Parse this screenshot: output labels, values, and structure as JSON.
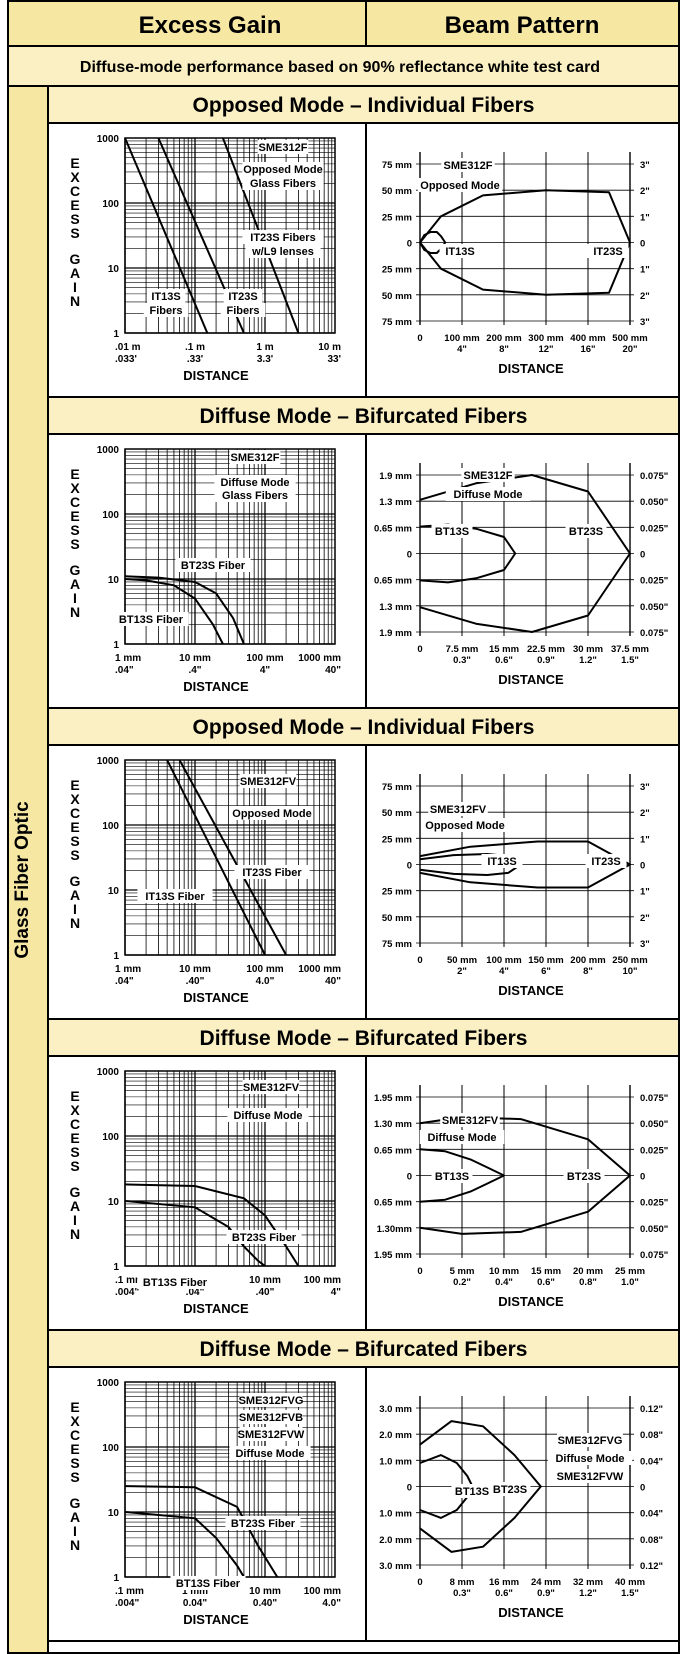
{
  "header": {
    "col1": "Excess Gain",
    "col2": "Beam Pattern"
  },
  "note": "Diffuse-mode performance based on 90% reflectance white test card",
  "side_label": "Glass Fiber Optic",
  "colors": {
    "header_bg": "#f6e7a3",
    "note_bg": "#fbf0c3",
    "side_bg": "#f6e7a3",
    "line": "#000000",
    "bg": "#ffffff"
  },
  "sections": [
    {
      "title": "Opposed Mode – Individual Fibers",
      "gain": {
        "ylabel": "EXCESS GAIN",
        "xlabel": "DISTANCE",
        "y_ticks": [
          "1000",
          "100",
          "10",
          "1"
        ],
        "x_ticks": [
          [
            ".01 m",
            ".033'"
          ],
          [
            ".1 m",
            ".33'"
          ],
          [
            "1 m",
            "3.3'"
          ],
          [
            "10 m",
            "33'"
          ]
        ],
        "boxes": [
          [
            "SME312F"
          ],
          [
            "Opposed Mode",
            "Glass Fibers"
          ],
          [
            "IT23S Fibers",
            "w/L9 lenses"
          ],
          [
            "IT13S",
            "Fibers"
          ],
          [
            "IT23S",
            "Fibers"
          ]
        ]
      },
      "beam": {
        "xlabel": "DISTANCE",
        "y_left": [
          "75 mm",
          "50 mm",
          "25 mm",
          "0",
          "25 mm",
          "50 mm",
          "75 mm"
        ],
        "y_right": [
          "3\"",
          "2\"",
          "1\"",
          "0",
          "1\"",
          "2\"",
          "3\""
        ],
        "x_ticks": [
          [
            "0",
            ""
          ],
          [
            "100 mm",
            "4\""
          ],
          [
            "200 mm",
            "8\""
          ],
          [
            "300 mm",
            "12\""
          ],
          [
            "400 mm",
            "16\""
          ],
          [
            "500 mm",
            "20\""
          ]
        ],
        "boxes": [
          [
            "SME312F"
          ],
          [
            "Opposed Mode"
          ],
          [
            "IT13S"
          ],
          [
            "IT23S"
          ]
        ]
      }
    },
    {
      "title": "Diffuse Mode – Bifurcated Fibers",
      "gain": {
        "ylabel": "EXCESS GAIN",
        "xlabel": "DISTANCE",
        "y_ticks": [
          "1000",
          "100",
          "10",
          "1"
        ],
        "x_ticks": [
          [
            "1 mm",
            ".04\""
          ],
          [
            "10 mm",
            ".4\""
          ],
          [
            "100 mm",
            "4\""
          ],
          [
            "1000 mm",
            "40\""
          ]
        ],
        "boxes": [
          [
            "SME312F"
          ],
          [
            "Diffuse Mode",
            "Glass Fibers"
          ],
          [
            "BT23S Fiber"
          ],
          [
            "BT13S Fiber"
          ]
        ]
      },
      "beam": {
        "xlabel": "DISTANCE",
        "y_left": [
          "1.9 mm",
          "1.3 mm",
          "0.65 mm",
          "0",
          "0.65 mm",
          "1.3 mm",
          "1.9 mm"
        ],
        "y_right": [
          "0.075\"",
          "0.050\"",
          "0.025\"",
          "0",
          "0.025\"",
          "0.050\"",
          "0.075\""
        ],
        "x_ticks": [
          [
            "0",
            ""
          ],
          [
            "7.5 mm",
            "0.3\""
          ],
          [
            "15 mm",
            "0.6\""
          ],
          [
            "22.5 mm",
            "0.9\""
          ],
          [
            "30 mm",
            "1.2\""
          ],
          [
            "37.5 mm",
            "1.5\""
          ]
        ],
        "boxes": [
          [
            "SME312F"
          ],
          [
            "Diffuse Mode"
          ],
          [
            "BT13S"
          ],
          [
            "BT23S"
          ]
        ]
      }
    },
    {
      "title": "Opposed Mode – Individual Fibers",
      "gain": {
        "ylabel": "EXCESS GAIN",
        "xlabel": "DISTANCE",
        "y_ticks": [
          "1000",
          "100",
          "10",
          "1"
        ],
        "x_ticks": [
          [
            "1 mm",
            ".04\""
          ],
          [
            "10 mm",
            ".40\""
          ],
          [
            "100 mm",
            "4.0\""
          ],
          [
            "1000 mm",
            "40\""
          ]
        ],
        "boxes": [
          [
            "SME312FV"
          ],
          [
            "Opposed Mode"
          ],
          [
            "IT23S Fiber"
          ],
          [
            "IT13S Fiber"
          ]
        ]
      },
      "beam": {
        "xlabel": "DISTANCE",
        "y_left": [
          "75 mm",
          "50 mm",
          "25 mm",
          "0",
          "25 mm",
          "50 mm",
          "75 mm"
        ],
        "y_right": [
          "3\"",
          "2\"",
          "1\"",
          "0",
          "1\"",
          "2\"",
          "3\""
        ],
        "x_ticks": [
          [
            "0",
            ""
          ],
          [
            "50 mm",
            "2\""
          ],
          [
            "100 mm",
            "4\""
          ],
          [
            "150 mm",
            "6\""
          ],
          [
            "200 mm",
            "8\""
          ],
          [
            "250 mm",
            "10\""
          ]
        ],
        "boxes": [
          [
            "SME312FV"
          ],
          [
            "Opposed Mode"
          ],
          [
            "IT13S"
          ],
          [
            "IT23S"
          ]
        ]
      }
    },
    {
      "title": "Diffuse Mode – Bifurcated Fibers",
      "gain": {
        "ylabel": "EXCESS GAIN",
        "xlabel": "DISTANCE",
        "y_ticks": [
          "1000",
          "100",
          "10",
          "1"
        ],
        "x_ticks": [
          [
            ".1 mm",
            ".004\""
          ],
          [
            "1 mm",
            ".04\""
          ],
          [
            "10 mm",
            ".40\""
          ],
          [
            "100 mm",
            "4\""
          ]
        ],
        "boxes": [
          [
            "SME312FV"
          ],
          [
            "Diffuse Mode"
          ],
          [
            "BT23S Fiber"
          ],
          [
            "BT13S Fiber"
          ]
        ]
      },
      "beam": {
        "xlabel": "DISTANCE",
        "y_left": [
          "1.95 mm",
          "1.30 mm",
          "0.65 mm",
          "0",
          "0.65 mm",
          "1.30mm",
          "1.95 mm"
        ],
        "y_right": [
          "0.075\"",
          "0.050\"",
          "0.025\"",
          "0",
          "0.025\"",
          "0.050\"",
          "0.075\""
        ],
        "x_ticks": [
          [
            "0",
            ""
          ],
          [
            "5 mm",
            "0.2\""
          ],
          [
            "10 mm",
            "0.4\""
          ],
          [
            "15 mm",
            "0.6\""
          ],
          [
            "20 mm",
            "0.8\""
          ],
          [
            "25 mm",
            "1.0\""
          ]
        ],
        "boxes": [
          [
            "SME312FV"
          ],
          [
            "Diffuse Mode"
          ],
          [
            "BT13S"
          ],
          [
            "BT23S"
          ]
        ]
      }
    },
    {
      "title": "Diffuse Mode – Bifurcated Fibers",
      "gain": {
        "ylabel": "EXCESS GAIN",
        "xlabel": "DISTANCE",
        "y_ticks": [
          "1000",
          "100",
          "10",
          "1"
        ],
        "x_ticks": [
          [
            ".1 mm",
            ".004\""
          ],
          [
            "1 mm",
            "0.04\""
          ],
          [
            "10 mm",
            "0.40\""
          ],
          [
            "100 mm",
            "4.0\""
          ]
        ],
        "boxes": [
          [
            "SME312FVG",
            "SME312FVB",
            "SME312FVW"
          ],
          [
            "Diffuse Mode"
          ],
          [
            "BT23S Fiber"
          ],
          [
            "BT13S Fiber"
          ]
        ]
      },
      "beam": {
        "xlabel": "DISTANCE",
        "y_left": [
          "3.0 mm",
          "2.0 mm",
          "1.0 mm",
          "0",
          "1.0 mm",
          "2.0 mm",
          "3.0 mm"
        ],
        "y_right": [
          "0.12\"",
          "0.08\"",
          "0.04\"",
          "0",
          "0.04\"",
          "0.08\"",
          "0.12\""
        ],
        "x_ticks": [
          [
            "0",
            ""
          ],
          [
            "8 mm",
            "0.3\""
          ],
          [
            "16 mm",
            "0.6\""
          ],
          [
            "24 mm",
            "0.9\""
          ],
          [
            "32 mm",
            "1.2\""
          ],
          [
            "40 mm",
            "1.5\""
          ]
        ],
        "boxes": [
          [
            "SME312FVG",
            "SME312FVB",
            "SME312FVW"
          ],
          [
            "Diffuse Mode"
          ],
          [
            "BT13S"
          ],
          [
            "BT23S"
          ]
        ]
      }
    }
  ],
  "chart_data": [
    {
      "type": "line",
      "title": "Opposed Mode – Individual Fibers",
      "xlabel": "DISTANCE",
      "ylabel": "EXCESS GAIN",
      "x_scale": "log",
      "y_scale": "log",
      "xlim": [
        0.01,
        10
      ],
      "ylim": [
        1,
        1000
      ],
      "x_unit": "m",
      "series": [
        {
          "name": "IT13S Fibers",
          "x": [
            0.01,
            0.15
          ],
          "y": [
            1000,
            1
          ]
        },
        {
          "name": "IT23S Fibers",
          "x": [
            0.03,
            0.5
          ],
          "y": [
            1000,
            1
          ]
        },
        {
          "name": "IT23S Fibers w/L9 lenses",
          "x": [
            0.25,
            3
          ],
          "y": [
            1000,
            1
          ]
        }
      ]
    },
    {
      "type": "line",
      "title": "Opposed Mode – Individual Fibers (Beam Pattern)",
      "xlabel": "DISTANCE",
      "xlim": [
        0,
        500
      ],
      "ylim": [
        -75,
        75
      ],
      "x_unit": "mm",
      "series": [
        {
          "name": "IT13S",
          "x": [
            0,
            10,
            25,
            40,
            50,
            60
          ],
          "y": [
            0,
            7,
            10,
            10,
            6,
            0
          ]
        },
        {
          "name": "IT23S",
          "x": [
            0,
            50,
            150,
            300,
            450,
            500
          ],
          "y": [
            0,
            25,
            45,
            50,
            48,
            0
          ]
        }
      ]
    },
    {
      "type": "line",
      "title": "Diffuse Mode – Bifurcated Fibers",
      "xlabel": "DISTANCE",
      "ylabel": "EXCESS GAIN",
      "x_scale": "log",
      "y_scale": "log",
      "xlim": [
        1,
        1000
      ],
      "ylim": [
        1,
        1000
      ],
      "x_unit": "mm",
      "series": [
        {
          "name": "BT13S Fiber",
          "x": [
            1,
            2,
            5,
            10,
            18,
            25
          ],
          "y": [
            10,
            9.5,
            8,
            5,
            2,
            1
          ]
        },
        {
          "name": "BT23S Fiber",
          "x": [
            1,
            3,
            10,
            20,
            35,
            50
          ],
          "y": [
            11,
            10.5,
            9,
            6,
            2.5,
            1
          ]
        }
      ]
    },
    {
      "type": "line",
      "title": "Diffuse Mode – Bifurcated Fibers (Beam Pattern)",
      "xlabel": "DISTANCE",
      "xlim": [
        0,
        37.5
      ],
      "ylim": [
        -1.9,
        1.9
      ],
      "x_unit": "mm",
      "series": [
        {
          "name": "BT13S",
          "x": [
            0,
            5,
            10,
            15,
            17
          ],
          "y": [
            0.65,
            0.7,
            0.6,
            0.4,
            0
          ]
        },
        {
          "name": "BT23S",
          "x": [
            0,
            10,
            20,
            30,
            37.5
          ],
          "y": [
            1.3,
            1.7,
            1.9,
            1.5,
            0
          ]
        }
      ]
    },
    {
      "type": "line",
      "title": "Opposed Mode – Individual Fibers",
      "xlabel": "DISTANCE",
      "ylabel": "EXCESS GAIN",
      "x_scale": "log",
      "y_scale": "log",
      "xlim": [
        1,
        1000
      ],
      "ylim": [
        1,
        1000
      ],
      "x_unit": "mm",
      "series": [
        {
          "name": "IT13S Fiber",
          "x": [
            4,
            100
          ],
          "y": [
            1000,
            1
          ]
        },
        {
          "name": "IT23S Fiber",
          "x": [
            6,
            200
          ],
          "y": [
            1000,
            1
          ]
        }
      ]
    },
    {
      "type": "line",
      "title": "Opposed Mode – Individual Fibers (Beam Pattern)",
      "xlabel": "DISTANCE",
      "xlim": [
        0,
        250
      ],
      "ylim": [
        -75,
        75
      ],
      "x_unit": "mm",
      "series": [
        {
          "name": "IT13S",
          "x": [
            0,
            40,
            80,
            105,
            120
          ],
          "y": [
            5,
            9,
            10,
            8,
            0
          ]
        },
        {
          "name": "IT23S",
          "x": [
            0,
            60,
            140,
            200,
            250
          ],
          "y": [
            8,
            17,
            22,
            22,
            0
          ]
        }
      ]
    },
    {
      "type": "line",
      "title": "Diffuse Mode – Bifurcated Fibers",
      "xlabel": "DISTANCE",
      "ylabel": "EXCESS GAIN",
      "x_scale": "log",
      "y_scale": "log",
      "xlim": [
        0.1,
        100
      ],
      "ylim": [
        1,
        1000
      ],
      "x_unit": "mm",
      "series": [
        {
          "name": "BT13S Fiber",
          "x": [
            0.1,
            1,
            3,
            5,
            8,
            10
          ],
          "y": [
            10,
            8,
            4,
            2,
            1.2,
            1
          ]
        },
        {
          "name": "BT23S Fiber",
          "x": [
            0.1,
            1,
            5,
            10,
            20,
            30
          ],
          "y": [
            18,
            17,
            11,
            6,
            2,
            1
          ]
        }
      ]
    },
    {
      "type": "line",
      "title": "Diffuse Mode – Bifurcated Fibers (Beam Pattern)",
      "xlabel": "DISTANCE",
      "xlim": [
        0,
        25
      ],
      "ylim": [
        -1.95,
        1.95
      ],
      "x_unit": "mm",
      "series": [
        {
          "name": "BT13S",
          "x": [
            0,
            3,
            6,
            8,
            10
          ],
          "y": [
            0.65,
            0.6,
            0.4,
            0.2,
            0
          ]
        },
        {
          "name": "BT23S",
          "x": [
            0,
            5,
            12,
            20,
            25
          ],
          "y": [
            1.3,
            1.45,
            1.4,
            0.9,
            0
          ]
        }
      ]
    },
    {
      "type": "line",
      "title": "Diffuse Mode – Bifurcated Fibers",
      "xlabel": "DISTANCE",
      "ylabel": "EXCESS GAIN",
      "x_scale": "log",
      "y_scale": "log",
      "xlim": [
        0.1,
        100
      ],
      "ylim": [
        1,
        1000
      ],
      "x_unit": "mm",
      "series": [
        {
          "name": "BT13S Fiber",
          "x": [
            0.1,
            1,
            2,
            4,
            5
          ],
          "y": [
            10,
            8,
            4,
            1.5,
            1
          ]
        },
        {
          "name": "BT23S Fiber",
          "x": [
            0.1,
            1,
            4,
            8,
            15
          ],
          "y": [
            25,
            24,
            12,
            3,
            1
          ]
        }
      ]
    },
    {
      "type": "line",
      "title": "Diffuse Mode – Bifurcated Fibers (Beam Pattern)",
      "xlabel": "DISTANCE",
      "xlim": [
        0,
        40
      ],
      "ylim": [
        -3,
        3
      ],
      "x_unit": "mm",
      "series": [
        {
          "name": "BT13S",
          "x": [
            0,
            4,
            7,
            9,
            10
          ],
          "y": [
            0.9,
            1.2,
            0.9,
            0.4,
            0
          ]
        },
        {
          "name": "BT23S",
          "x": [
            0,
            6,
            12,
            18,
            23
          ],
          "y": [
            1.6,
            2.5,
            2.3,
            1.2,
            0
          ]
        }
      ]
    }
  ]
}
